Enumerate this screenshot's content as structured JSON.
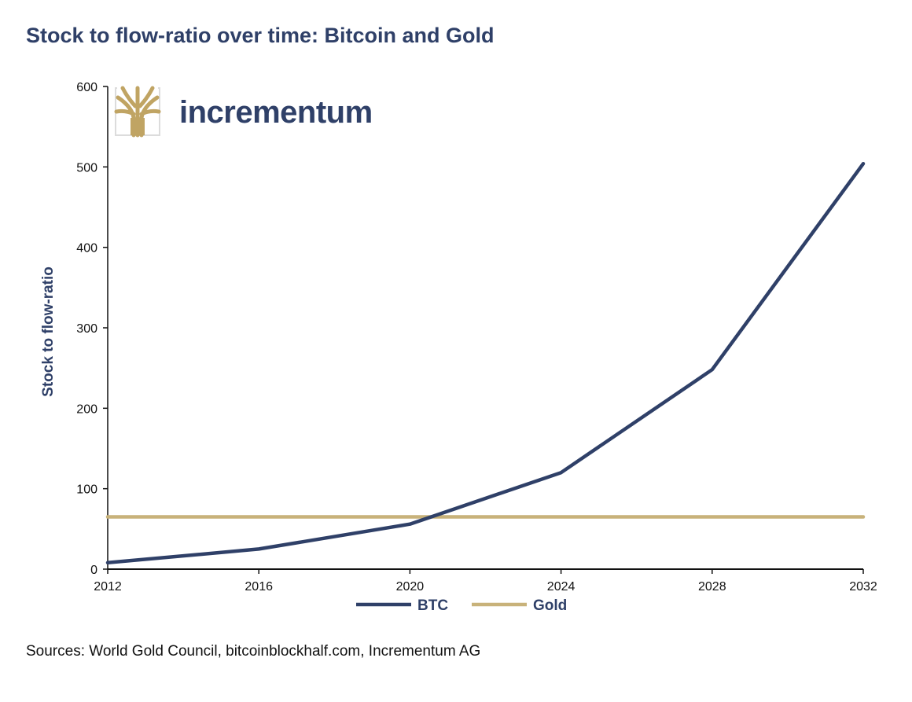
{
  "brand": {
    "logo_text": "incrementum",
    "logo_icon": "tree-logo-icon"
  },
  "colors": {
    "btc": "#2f4068",
    "gold": "#c8b27a",
    "axis": "#111111",
    "title": "#2f4068"
  },
  "chart_data": {
    "type": "line",
    "title": "Stock to flow-ratio over time: Bitcoin and Gold",
    "xlabel": "",
    "ylabel": "Stock to flow-ratio",
    "x": [
      2012,
      2016,
      2020,
      2024,
      2028,
      2032
    ],
    "xticks": [
      "2012",
      "2016",
      "2020",
      "2024",
      "2028",
      "2032"
    ],
    "yticks": [
      "0",
      "100",
      "200",
      "300",
      "400",
      "500",
      "600"
    ],
    "ytick_values": [
      0,
      100,
      200,
      300,
      400,
      500,
      600
    ],
    "xlim": [
      2012,
      2032
    ],
    "ylim": [
      0,
      600
    ],
    "grid": false,
    "legend_position": "bottom-center",
    "series": [
      {
        "name": "BTC",
        "values": [
          8,
          25,
          56,
          120,
          248,
          504
        ]
      },
      {
        "name": "Gold",
        "values": [
          65,
          65,
          65,
          65,
          65,
          65
        ]
      }
    ],
    "source": "Sources: World Gold Council, bitcoinblockhalf.com, Incrementum AG"
  }
}
